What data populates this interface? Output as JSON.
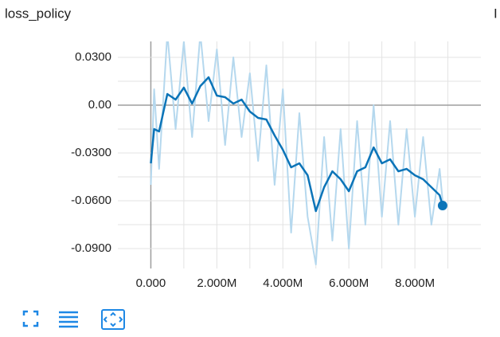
{
  "chart_data": {
    "type": "line",
    "title": "loss_policy",
    "side_label": "I",
    "x": [
      0,
      100000,
      250000,
      500000,
      750000,
      1000000,
      1250000,
      1500000,
      1750000,
      2000000,
      2250000,
      2500000,
      2750000,
      3000000,
      3250000,
      3500000,
      3750000,
      4000000,
      4250000,
      4500000,
      4750000,
      5000000,
      5250000,
      5500000,
      5750000,
      6000000,
      6250000,
      6500000,
      6750000,
      7000000,
      7250000,
      7500000,
      7750000,
      8000000,
      8250000,
      8500000,
      8750000,
      8840000
    ],
    "series": [
      {
        "color": "#b5d8ee",
        "values": [
          -0.05,
          0.01,
          -0.04,
          0.045,
          -0.015,
          0.04,
          -0.02,
          0.045,
          -0.01,
          0.035,
          -0.025,
          0.03,
          -0.02,
          0.02,
          -0.035,
          0.025,
          -0.05,
          0.01,
          -0.08,
          -0.005,
          -0.07,
          -0.1,
          -0.02,
          -0.085,
          -0.015,
          -0.09,
          -0.01,
          -0.075,
          0.0,
          -0.07,
          -0.01,
          -0.075,
          -0.015,
          -0.07,
          -0.02,
          -0.075,
          -0.04,
          -0.06
        ]
      },
      {
        "color": "#0b74b8",
        "values": [
          -0.0365,
          -0.015,
          -0.0165,
          0.007,
          0.0035,
          0.011,
          0.001,
          0.012,
          0.0175,
          0.006,
          0.005,
          0.001,
          0.0035,
          -0.004,
          -0.008,
          -0.009,
          -0.019,
          -0.028,
          -0.039,
          -0.0365,
          -0.044,
          -0.0665,
          -0.0515,
          -0.0415,
          -0.0465,
          -0.054,
          -0.0415,
          -0.039,
          -0.0265,
          -0.0365,
          -0.034,
          -0.0415,
          -0.04,
          -0.044,
          -0.0465,
          -0.0515,
          -0.0565,
          -0.063
        ]
      }
    ],
    "xlim": [
      -1000000,
      10000000
    ],
    "xticks": [
      {
        "value": 0,
        "label": "0.000"
      },
      {
        "value": 2000000,
        "label": "2.000M"
      },
      {
        "value": 4000000,
        "label": "4.000M"
      },
      {
        "value": 6000000,
        "label": "6.000M"
      },
      {
        "value": 8000000,
        "label": "8.000M"
      }
    ],
    "xminorticks": [
      1000000,
      3000000,
      5000000,
      7000000,
      9000000
    ],
    "ylim": [
      -0.1025,
      0.04
    ],
    "yticks": [
      {
        "value": 0.03,
        "label": "0.0300"
      },
      {
        "value": 0,
        "label": "0.00"
      },
      {
        "value": -0.03,
        "label": "-0.0300"
      },
      {
        "value": -0.06,
        "label": "-0.0600"
      },
      {
        "value": -0.09,
        "label": "-0.0900"
      }
    ],
    "yminorticks": [
      0.015,
      -0.015,
      -0.045,
      -0.075
    ],
    "grid": true
  }
}
